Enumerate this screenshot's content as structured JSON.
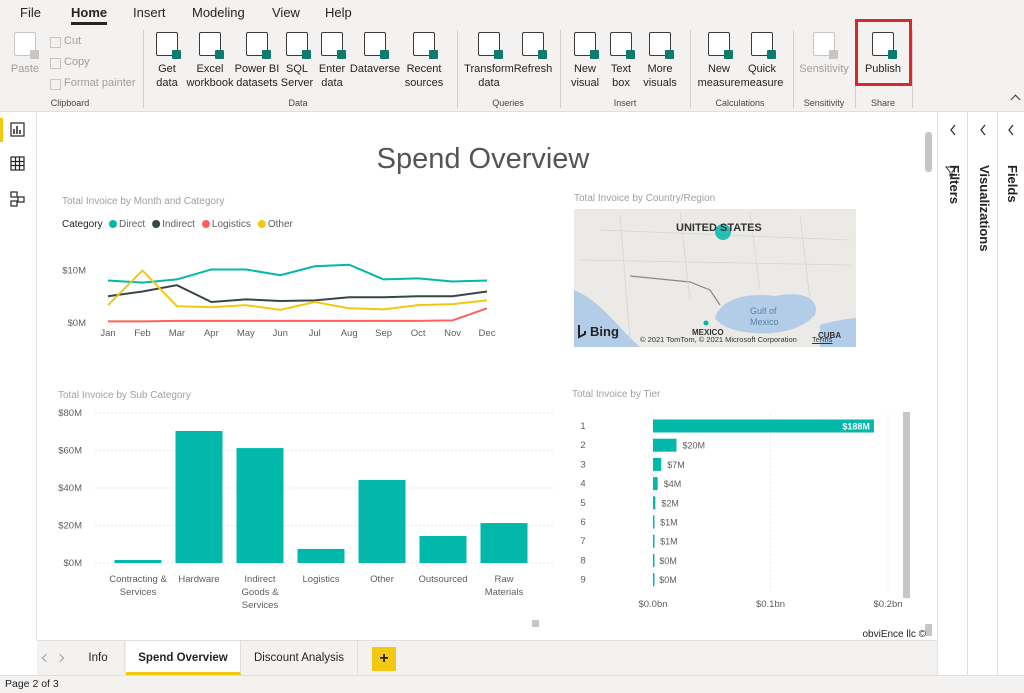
{
  "ribbon": {
    "tabs": [
      "File",
      "Home",
      "Insert",
      "Modeling",
      "View",
      "Help"
    ],
    "groups": [
      {
        "label": "Clipboard",
        "buttons": [
          {
            "lines": [
              "Paste"
            ]
          }
        ],
        "small_buttons": [
          "Cut",
          "Copy",
          "Format painter"
        ]
      },
      {
        "label": "Data",
        "buttons": [
          {
            "lines": [
              "Get",
              "data"
            ]
          },
          {
            "lines": [
              "Excel",
              "workbook"
            ]
          },
          {
            "lines": [
              "Power BI",
              "datasets"
            ]
          },
          {
            "lines": [
              "SQL",
              "Server"
            ]
          },
          {
            "lines": [
              "Enter",
              "data"
            ]
          },
          {
            "lines": [
              "Dataverse"
            ]
          },
          {
            "lines": [
              "Recent",
              "sources"
            ]
          }
        ]
      },
      {
        "label": "Queries",
        "buttons": [
          {
            "lines": [
              "Transform",
              "data"
            ]
          },
          {
            "lines": [
              "Refresh"
            ]
          }
        ]
      },
      {
        "label": "Insert",
        "buttons": [
          {
            "lines": [
              "New",
              "visual"
            ]
          },
          {
            "lines": [
              "Text",
              "box"
            ]
          },
          {
            "lines": [
              "More",
              "visuals"
            ]
          }
        ]
      },
      {
        "label": "Calculations",
        "buttons": [
          {
            "lines": [
              "New",
              "measure"
            ]
          },
          {
            "lines": [
              "Quick",
              "measure"
            ]
          }
        ]
      },
      {
        "label": "Sensitivity",
        "buttons": [
          {
            "lines": [
              "Sensitivity"
            ]
          }
        ]
      },
      {
        "label": "Share",
        "buttons": [
          {
            "lines": [
              "Publish"
            ]
          }
        ]
      }
    ]
  },
  "panes": [
    "Filters",
    "Visualizations",
    "Fields"
  ],
  "report": {
    "title": "Spend Overview",
    "footer": "obviEnce llc ©"
  },
  "map": {
    "title": "Total Invoice by Country/Region",
    "labels": [
      "UNITED STATES",
      "Gulf of Mexico",
      "MEXICO",
      "CUBA"
    ],
    "brand": "Bing",
    "attribution": "© 2021 TomTom, © 2021 Microsoft Corporation",
    "terms": "Terms"
  },
  "chart_data": [
    {
      "type": "line",
      "title": "Total Invoice by Month and Category",
      "legend_title": "Category",
      "categories": [
        "Jan",
        "Feb",
        "Mar",
        "Apr",
        "May",
        "Jun",
        "Jul",
        "Aug",
        "Sep",
        "Oct",
        "Nov",
        "Dec"
      ],
      "series": [
        {
          "name": "Direct",
          "color": "#01b8aa",
          "values": [
            8.1,
            7.7,
            8.3,
            10.2,
            10.2,
            9.1,
            10.8,
            11.1,
            8.3,
            8.5,
            7.9,
            8.1
          ]
        },
        {
          "name": "Indirect",
          "color": "#374649",
          "values": [
            5.1,
            6.0,
            7.2,
            4.0,
            4.5,
            4.2,
            4.3,
            4.9,
            4.9,
            5.1,
            5.1,
            6.0
          ]
        },
        {
          "name": "Logistics",
          "color": "#fd625e",
          "values": [
            0.3,
            0.3,
            0.4,
            0.4,
            0.4,
            0.4,
            0.4,
            0.4,
            0.4,
            0.4,
            0.5,
            2.8
          ]
        },
        {
          "name": "Other",
          "color": "#f2c80f",
          "values": [
            3.4,
            10.0,
            3.2,
            3.0,
            3.4,
            2.5,
            4.0,
            2.8,
            2.6,
            3.4,
            3.6,
            4.3
          ]
        }
      ],
      "ylim": [
        0,
        12
      ],
      "yticks": [
        {
          "value": 0,
          "label": "$0M"
        },
        {
          "value": 10,
          "label": "$10M"
        }
      ]
    },
    {
      "type": "bar",
      "title": "Total Invoice by Sub Category",
      "categories": [
        "Contracting & Services",
        "Hardware",
        "Indirect Goods & Services",
        "Logistics",
        "Other",
        "Outsourced",
        "Raw Materials"
      ],
      "values": [
        1.6,
        70.4,
        61.3,
        7.5,
        44.3,
        14.4,
        21.3
      ],
      "color": "#01b8aa",
      "ylim": [
        0,
        80
      ],
      "yticks": [
        {
          "value": 0,
          "label": "$0M"
        },
        {
          "value": 20,
          "label": "$20M"
        },
        {
          "value": 40,
          "label": "$40M"
        },
        {
          "value": 60,
          "label": "$60M"
        },
        {
          "value": 80,
          "label": "$80M"
        }
      ],
      "grid": true
    },
    {
      "type": "hbar",
      "title": "Total Invoice by Tier",
      "categories": [
        "1",
        "2",
        "3",
        "4",
        "5",
        "6",
        "7",
        "8",
        "9"
      ],
      "values": [
        0.188,
        0.02,
        0.007,
        0.004,
        0.002,
        0.001,
        0.001,
        0.0003,
        0.0002
      ],
      "value_labels": [
        "$188M",
        "$20M",
        "$7M",
        "$4M",
        "$2M",
        "$1M",
        "$1M",
        "$0M",
        "$0M"
      ],
      "color": "#01b8aa",
      "xlim": [
        0,
        0.2
      ],
      "xticks": [
        {
          "value": 0,
          "label": "$0.0bn"
        },
        {
          "value": 0.1,
          "label": "$0.1bn"
        },
        {
          "value": 0.2,
          "label": "$0.2bn"
        }
      ],
      "grid": true
    }
  ],
  "page_tabs": [
    "Info",
    "Spend Overview",
    "Discount Analysis",
    "+"
  ],
  "status": "Page 2 of 3"
}
